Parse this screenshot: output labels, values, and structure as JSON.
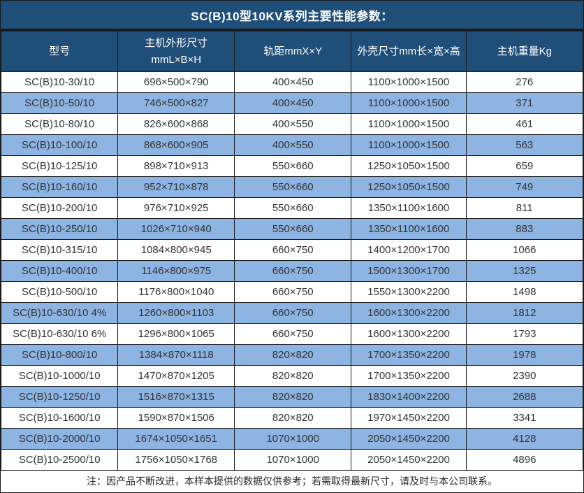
{
  "title": "SC(B)10型10KV系列主要性能参数：",
  "colors": {
    "header_bg": "#1F4E79",
    "alt_row_bg": "#8DB4E2",
    "border": "#1a1a1a",
    "header_text": "#ffffff",
    "body_text": "#333333"
  },
  "table": {
    "headers": [
      "型号",
      "主机外形尺寸\nmmL×B×H",
      "轨距mmX×Y",
      "外壳尺寸mm长×宽×高",
      "主机重量Kg"
    ],
    "rows": [
      [
        "SC(B)10-30/10",
        "696×500×790",
        "400×450",
        "1100×1000×1500",
        "276"
      ],
      [
        "SC(B)10-50/10",
        "746×500×827",
        "400×450",
        "1100×1000×1500",
        "371"
      ],
      [
        "SC(B)10-80/10",
        "826×600×868",
        "400×550",
        "1100×1000×1500",
        "461"
      ],
      [
        "SC(B)10-100/10",
        "868×600×905",
        "400×550",
        "1100×1000×1500",
        "563"
      ],
      [
        "SC(B)10-125/10",
        "898×710×913",
        "550×660",
        "1250×1050×1500",
        "659"
      ],
      [
        "SC(B)10-160/10",
        "952×710×878",
        "550×660",
        "1250×1050×1500",
        "749"
      ],
      [
        "SC(B)10-200/10",
        "976×710×925",
        "550×660",
        "1350×1100×1600",
        "811"
      ],
      [
        "SC(B)10-250/10",
        "1026×710×940",
        "550×660",
        "1350×1100×1600",
        "883"
      ],
      [
        "SC(B)10-315/10",
        "1084×800×945",
        "660×750",
        "1400×1200×1700",
        "1066"
      ],
      [
        "SC(B)10-400/10",
        "1146×800×975",
        "660×750",
        "1500×1300×1700",
        "1325"
      ],
      [
        "SC(B)10-500/10",
        "1176×800×1040",
        "660×750",
        "1550×1300×2200",
        "1498"
      ],
      [
        "SC(B)10-630/10 4%",
        "1260×800×1103",
        "660×750",
        "1600×1300×2200",
        "1812"
      ],
      [
        "SC(B)10-630/10 6%",
        "1296×800×1065",
        "660×750",
        "1600×1300×2200",
        "1793"
      ],
      [
        "SC(B)10-800/10",
        "1384×870×1118",
        "820×820",
        "1700×1350×2200",
        "1978"
      ],
      [
        "SC(B)10-1000/10",
        "1470×870×1205",
        "820×820",
        "1700×1350×2200",
        "2390"
      ],
      [
        "SC(B)10-1250/10",
        "1516×870×1315",
        "820×820",
        "1830×1400×2200",
        "2688"
      ],
      [
        "SC(B)10-1600/10",
        "1590×870×1506",
        "820×820",
        "1970×1450×2200",
        "3341"
      ],
      [
        "SC(B)10-2000/10",
        "1674×1050×1651",
        "1070×1000",
        "2050×1450×2200",
        "4128"
      ],
      [
        "SC(B)10-2500/10",
        "1756×1050×1768",
        "1070×1000",
        "2050×1450×2200",
        "4896"
      ]
    ]
  },
  "footer_note": "注：因产品不断改进，本样本提供的数据仅供参考；若需取得最新尺寸，请及时与本公司联系。",
  "chart_data": {
    "type": "table",
    "title": "SC(B)10型10KV系列主要性能参数：",
    "columns": [
      "型号",
      "主机外形尺寸 mmL×B×H",
      "轨距mmX×Y",
      "外壳尺寸mm长×宽×高",
      "主机重量Kg"
    ],
    "rows_note": "values identical to table.rows above"
  }
}
